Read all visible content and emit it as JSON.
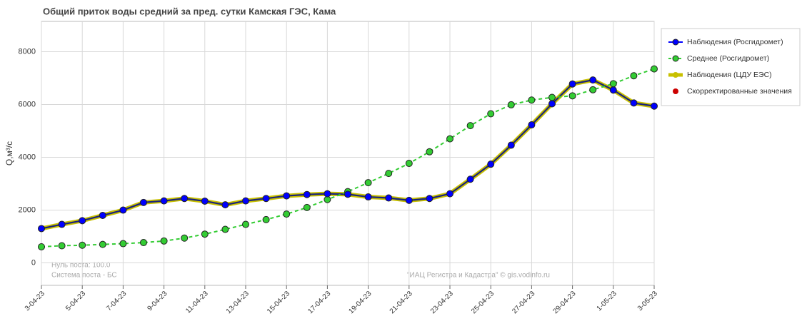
{
  "chart_data": {
    "type": "line",
    "title": "Общий приток воды средний за пред. сутки Камская ГЭС,  Кама",
    "y_label": "Q,м³/с",
    "annotations": [
      "Нуль поста: 100.0",
      "Система поста - БС",
      "\"ИАЦ Регистра и Кадастра\" © gis.vodinfo.ru"
    ],
    "categories": [
      "3-04-23",
      null,
      "5-04-23",
      null,
      "7-04-23",
      null,
      "9-04-23",
      null,
      "11-04-23",
      null,
      "13-04-23",
      null,
      "15-04-23",
      null,
      "17-04-23",
      null,
      "19-04-23",
      null,
      "21-04-23",
      null,
      "23-04-23",
      null,
      "25-04-23",
      null,
      "27-04-23",
      null,
      "29-04-23",
      null,
      "1-05-23",
      null,
      "3-05-23"
    ],
    "series": [
      {
        "name": "Наблюдения (Росгидромет)",
        "color": "#0000ff",
        "values": [
          1300,
          1460,
          1600,
          1800,
          2000,
          2290,
          2350,
          2440,
          2340,
          2200,
          2350,
          2440,
          2540,
          2590,
          2620,
          2600,
          2500,
          2460,
          2370,
          2440,
          2620,
          3170,
          3740,
          4460,
          5230,
          6030,
          6780,
          6930,
          6550,
          6060,
          5940
        ]
      },
      {
        "name": "Среднее (Росгидромет)",
        "color": "#33cc33",
        "values": [
          610,
          650,
          670,
          700,
          730,
          770,
          830,
          940,
          1090,
          1270,
          1460,
          1640,
          1850,
          2100,
          2400,
          2700,
          3040,
          3390,
          3770,
          4210,
          4700,
          5200,
          5650,
          5990,
          6170,
          6270,
          6330,
          6560,
          6790,
          7090,
          7350
        ]
      },
      {
        "name": "Наблюдения (ЦДУ ЕЭС)",
        "color": "#c8c000",
        "values": [
          1300,
          1460,
          1600,
          1800,
          2000,
          2290,
          2350,
          2440,
          2340,
          2200,
          2350,
          2440,
          2540,
          2590,
          2620,
          2600,
          2500,
          2460,
          2370,
          2440,
          2620,
          3170,
          3740,
          4460,
          5230,
          6030,
          6780,
          6930,
          6550,
          6060,
          5940
        ]
      },
      {
        "name": "Скорректированные значения",
        "color": "#cc0000",
        "values": [
          null,
          null,
          null,
          null,
          null,
          null,
          null,
          null,
          null,
          null,
          null,
          null,
          null,
          null,
          null,
          null,
          null,
          null,
          null,
          null,
          null,
          null,
          null,
          null,
          null,
          null,
          null,
          null,
          null,
          null,
          null
        ]
      }
    ],
    "ylim": [
      -850,
      9150
    ],
    "yticks": [
      0,
      2000,
      4000,
      6000,
      8000
    ],
    "grid": true
  }
}
